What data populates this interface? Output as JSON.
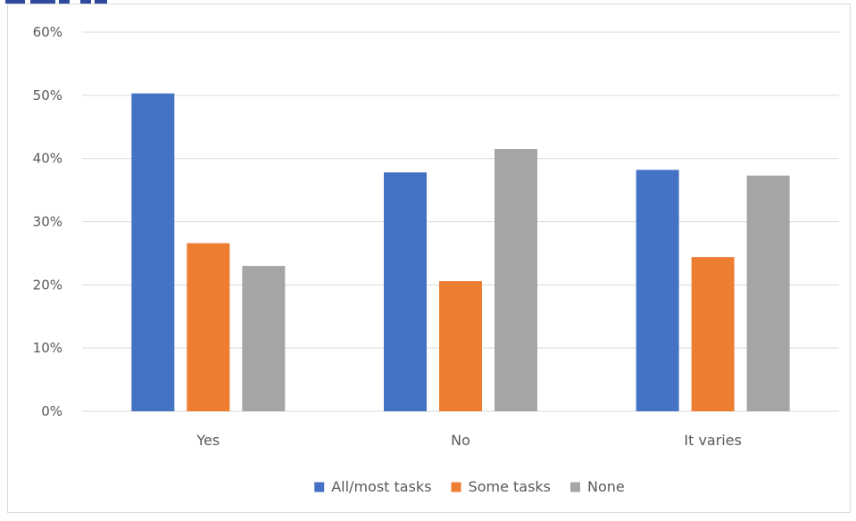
{
  "chart_data": {
    "type": "bar",
    "title": "",
    "xlabel": "",
    "ylabel": "",
    "categories": [
      "Yes",
      "No",
      "It varies"
    ],
    "series": [
      {
        "name": "All/most tasks",
        "values": [
          50.3,
          37.8,
          38.2
        ],
        "color": "#4472C4"
      },
      {
        "name": "Some tasks",
        "values": [
          26.6,
          20.6,
          24.4
        ],
        "color": "#ED7D31"
      },
      {
        "name": "None",
        "values": [
          23.0,
          41.5,
          37.3
        ],
        "color": "#A5A5A5"
      }
    ],
    "ylim": [
      0,
      60
    ],
    "yticks": [
      0,
      10,
      20,
      30,
      40,
      50,
      60
    ],
    "ytick_labels": [
      "0%",
      "10%",
      "20%",
      "30%",
      "40%",
      "50%",
      "60%"
    ],
    "grid": true,
    "legend_position": "bottom",
    "gridline_color": "#D9D9D9",
    "title_color": "#2E4A9E"
  }
}
